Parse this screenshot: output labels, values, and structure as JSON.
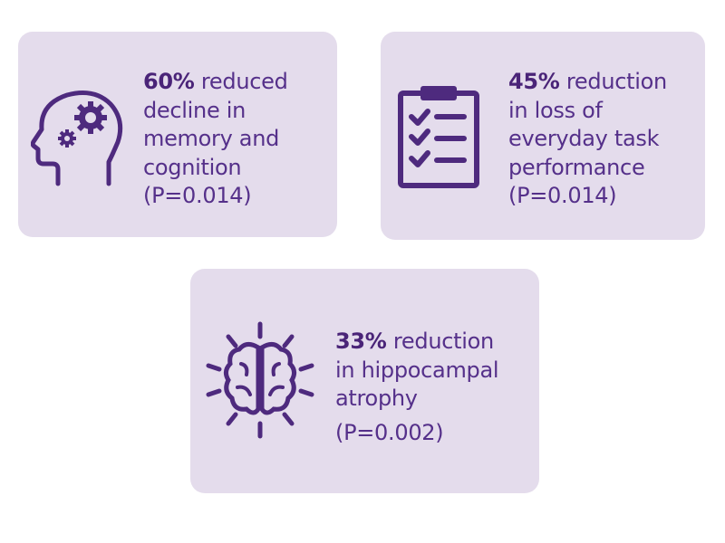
{
  "colors": {
    "card_background": "#e4dcec",
    "accent": "#4e2a7e"
  },
  "stats": [
    {
      "icon": "head-gears-icon",
      "value": "60%",
      "lines": [
        "reduced",
        "decline in",
        "memory and",
        "cognition",
        "(P=0.014)"
      ]
    },
    {
      "icon": "clipboard-checklist-icon",
      "value": "45%",
      "lines": [
        "reduction",
        "in loss of",
        "everyday task",
        "performance",
        "(P=0.014)"
      ]
    },
    {
      "icon": "brain-icon",
      "value": "33%",
      "lines": [
        "reduction",
        "in hippocampal",
        "atrophy",
        "(P=0.002)"
      ]
    }
  ]
}
